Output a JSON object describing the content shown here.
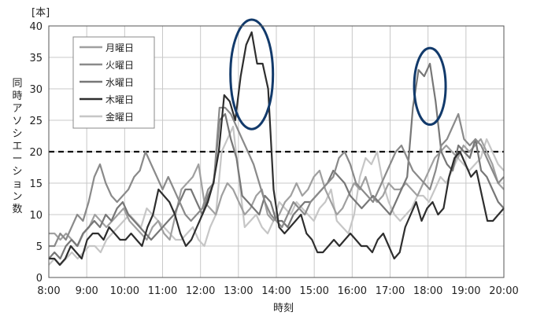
{
  "chart_data": {
    "type": "line",
    "unit_label": "[本]",
    "xlabel": "時刻",
    "ylabel": "同時アソシエーション数",
    "ylim": [
      0,
      40
    ],
    "yticks": [
      0,
      5,
      10,
      15,
      20,
      25,
      30,
      35,
      40
    ],
    "x_tick_labels": [
      "8:00",
      "9:00",
      "10:00",
      "11:00",
      "12:00",
      "13:00",
      "14:00",
      "15:00",
      "16:00",
      "17:00",
      "18:00",
      "19:00",
      "20:00"
    ],
    "x_start_hour": 8,
    "x_end_hour": 20,
    "threshold": 20,
    "grid": true,
    "legend_position": "top-left",
    "series": [
      {
        "name": "月曜日",
        "color": "#a0a0a0",
        "values": [
          7,
          7,
          6,
          7,
          6,
          5,
          7,
          8,
          10,
          9,
          8,
          9,
          10,
          11,
          9,
          8,
          7,
          6,
          8,
          9,
          7,
          6,
          10,
          14,
          15,
          16,
          18,
          12,
          11,
          10,
          13,
          15,
          14,
          12,
          10,
          11,
          13,
          14,
          10,
          9,
          10,
          12,
          13,
          15,
          13,
          14,
          16,
          17,
          14,
          12,
          10,
          11,
          13,
          15,
          14,
          16,
          13,
          12,
          13,
          15,
          14,
          14,
          15,
          14,
          13,
          15,
          17,
          19,
          20,
          21,
          20,
          19,
          21,
          20,
          21,
          22,
          20,
          18,
          15,
          14
        ]
      },
      {
        "name": "火曜日",
        "color": "#8a8a8a",
        "values": [
          5,
          5,
          7,
          6,
          8,
          10,
          9,
          12,
          16,
          18,
          15,
          13,
          12,
          13,
          14,
          16,
          17,
          20,
          18,
          16,
          14,
          16,
          14,
          12,
          10,
          9,
          10,
          11,
          14,
          15,
          27,
          27,
          26,
          24,
          22,
          20,
          18,
          15,
          12,
          10,
          9,
          8,
          10,
          12,
          11,
          10,
          12,
          13,
          14,
          15,
          16,
          19,
          20,
          18,
          15,
          14,
          13,
          12,
          14,
          16,
          18,
          20,
          21,
          19,
          17,
          16,
          15,
          14,
          17,
          21,
          22,
          24,
          26,
          22,
          21,
          22,
          21,
          19,
          17,
          15,
          16
        ]
      },
      {
        "name": "水曜日",
        "color": "#777777",
        "values": [
          3,
          4,
          3,
          5,
          6,
          5,
          7,
          8,
          9,
          8,
          10,
          9,
          11,
          12,
          10,
          9,
          8,
          7,
          6,
          7,
          8,
          9,
          10,
          12,
          14,
          14,
          12,
          10,
          13,
          15,
          25,
          26,
          22,
          19,
          13,
          12,
          11,
          10,
          13,
          12,
          9,
          9,
          8,
          10,
          11,
          12,
          12,
          13,
          14,
          15,
          17,
          16,
          15,
          13,
          12,
          11,
          12,
          13,
          12,
          11,
          10,
          12,
          14,
          16,
          27,
          33,
          32,
          34,
          28,
          20,
          18,
          17,
          21,
          20,
          19,
          22,
          17,
          16,
          14,
          12,
          11
        ]
      },
      {
        "name": "木曜日",
        "color": "#2e2e2e",
        "values": [
          3,
          3,
          2,
          3,
          5,
          4,
          3,
          6,
          7,
          7,
          6,
          8,
          7,
          6,
          6,
          7,
          6,
          5,
          8,
          10,
          14,
          13,
          12,
          10,
          7,
          5,
          6,
          8,
          10,
          12,
          15,
          20,
          29,
          28,
          25,
          32,
          37,
          39,
          34,
          34,
          30,
          14,
          8,
          7,
          8,
          9,
          10,
          7,
          6,
          4,
          4,
          5,
          6,
          5,
          6,
          7,
          6,
          5,
          5,
          4,
          6,
          7,
          5,
          3,
          4,
          8,
          10,
          12,
          9,
          11,
          12,
          10,
          11,
          16,
          19,
          20,
          18,
          16,
          17,
          13,
          9,
          9,
          10,
          11
        ]
      },
      {
        "name": "金曜日",
        "color": "#c6c6c6",
        "values": [
          2,
          3,
          2,
          3,
          4,
          3,
          4,
          5,
          5,
          4,
          6,
          7,
          8,
          9,
          10,
          9,
          8,
          11,
          10,
          9,
          8,
          7,
          6,
          6,
          7,
          8,
          6,
          5,
          8,
          10,
          20,
          22,
          24,
          16,
          8,
          9,
          10,
          8,
          7,
          9,
          12,
          11,
          10,
          12,
          11,
          10,
          9,
          11,
          12,
          14,
          9,
          8,
          7,
          10,
          16,
          19,
          18,
          20,
          15,
          12,
          10,
          9,
          10,
          11,
          13,
          13,
          12,
          14,
          16,
          15,
          17,
          19,
          18,
          17,
          18,
          19,
          22,
          20,
          18,
          17
        ]
      }
    ],
    "annotations": [
      {
        "type": "ellipse",
        "label": "",
        "x_hour": 13.35,
        "y_value": 32.3
      },
      {
        "type": "ellipse",
        "label": "",
        "x_hour": 18.05,
        "y_value": 30.4
      }
    ]
  }
}
